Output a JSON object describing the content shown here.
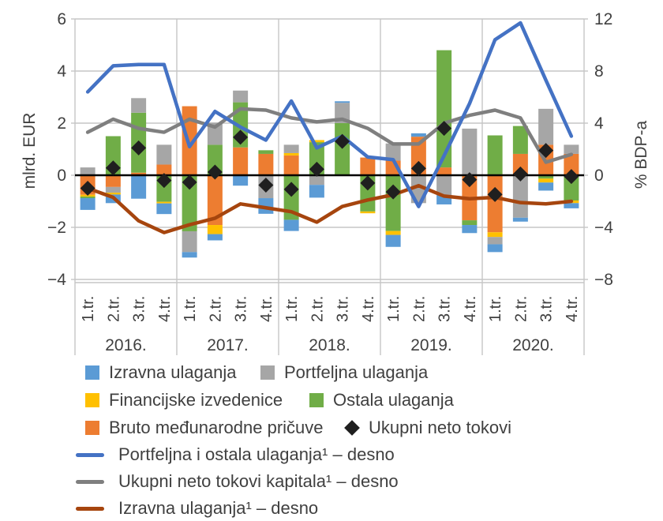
{
  "chart_data": {
    "type": "combo: stacked bars (left axis, mlrd. EUR) + diamond markers + three lines (right axis, % BDP-a)",
    "title": "",
    "left_axis": {
      "label": "mlrd. EUR",
      "ticks": [
        6,
        4,
        2,
        0,
        -2,
        -4
      ],
      "min": -4,
      "max": 6
    },
    "right_axis": {
      "label": "% BDP-a",
      "ticks": [
        12,
        8,
        4,
        0,
        -4,
        -8
      ],
      "min": -8,
      "max": 12
    },
    "years": [
      "2016.",
      "2017.",
      "2018.",
      "2019.",
      "2020."
    ],
    "quarter_labels": [
      "1.tr.",
      "2.tr.",
      "3.tr.",
      "4.tr."
    ],
    "grid_color": "#C6C6C6",
    "zero_line_color": "#000000",
    "text_color": "#404040",
    "series": {
      "pricuve": {
        "label": "Bruto međunarodne pričuve",
        "color": "#ED7D31"
      },
      "ostala": {
        "label": "Ostala ulaganja",
        "color": "#70AD47"
      },
      "financijske": {
        "label": "Financijske izvedenice",
        "color": "#FFC000"
      },
      "portfeljna": {
        "label": "Portfeljna ulaganja",
        "color": "#A6A6A6"
      },
      "izravna": {
        "label": "Izravna ulaganja",
        "color": "#5B9BD5"
      }
    },
    "bars_mlrd_eur": [
      {
        "year": "2016.",
        "q": "1.tr.",
        "pos": [
          [
            "portfeljna",
            0.3
          ]
        ],
        "neg": [
          [
            "pricuve",
            0.75
          ],
          [
            "financijske",
            0.07
          ],
          [
            "ostala",
            0.06
          ],
          [
            "izravna",
            0.45
          ]
        ]
      },
      {
        "year": "2016.",
        "q": "2.tr.",
        "pos": [
          [
            "ostala",
            1.5
          ]
        ],
        "neg": [
          [
            "pricuve",
            0.45
          ],
          [
            "portfeljna",
            0.22
          ],
          [
            "financijske",
            0.07
          ],
          [
            "izravna",
            0.33
          ]
        ]
      },
      {
        "year": "2016.",
        "q": "3.tr.",
        "pos": [
          [
            "pricuve",
            0.1
          ],
          [
            "ostala",
            2.3
          ],
          [
            "portfeljna",
            0.56
          ]
        ],
        "neg": [
          [
            "izravna",
            0.9
          ]
        ]
      },
      {
        "year": "2016.",
        "q": "4.tr.",
        "pos": [
          [
            "pricuve",
            0.41
          ],
          [
            "portfeljna",
            0.76
          ]
        ],
        "neg": [
          [
            "ostala",
            1.02
          ],
          [
            "financijske",
            0.06
          ],
          [
            "izravna",
            0.41
          ]
        ]
      },
      {
        "year": "2017.",
        "q": "1.tr.",
        "pos": [
          [
            "pricuve",
            2.65
          ]
        ],
        "neg": [
          [
            "ostala",
            2.15
          ],
          [
            "portfeljna",
            0.8
          ],
          [
            "izravna",
            0.21
          ]
        ]
      },
      {
        "year": "2017.",
        "q": "2.tr.",
        "pos": [
          [
            "ostala",
            1.17
          ],
          [
            "portfeljna",
            0.85
          ]
        ],
        "neg": [
          [
            "pricuve",
            1.91
          ],
          [
            "financijske",
            0.35
          ],
          [
            "izravna",
            0.24
          ]
        ]
      },
      {
        "year": "2017.",
        "q": "3.tr.",
        "pos": [
          [
            "pricuve",
            1.07
          ],
          [
            "ostala",
            1.73
          ],
          [
            "portfeljna",
            0.45
          ]
        ],
        "neg": [
          [
            "izravna",
            0.4
          ]
        ]
      },
      {
        "year": "2017.",
        "q": "4.tr.",
        "pos": [
          [
            "pricuve",
            0.82
          ],
          [
            "ostala",
            0.14
          ]
        ],
        "neg": [
          [
            "portfeljna",
            0.88
          ],
          [
            "izravna",
            0.6
          ]
        ]
      },
      {
        "year": "2018.",
        "q": "1.tr.",
        "pos": [
          [
            "pricuve",
            0.76
          ],
          [
            "financijske",
            0.09
          ],
          [
            "portfeljna",
            0.32
          ]
        ],
        "neg": [
          [
            "ostala",
            1.71
          ],
          [
            "izravna",
            0.43
          ]
        ]
      },
      {
        "year": "2018.",
        "q": "2.tr.",
        "pos": [
          [
            "ostala",
            1.27
          ],
          [
            "financijske",
            0.08
          ]
        ],
        "neg": [
          [
            "portfeljna",
            0.37
          ],
          [
            "izravna",
            0.49
          ]
        ]
      },
      {
        "year": "2018.",
        "q": "3.tr.",
        "pos": [
          [
            "ostala",
            2.0
          ],
          [
            "portfeljna",
            0.78
          ],
          [
            "izravna",
            0.06
          ]
        ],
        "neg": []
      },
      {
        "year": "2018.",
        "q": "4.tr.",
        "pos": [
          [
            "pricuve",
            0.68
          ]
        ],
        "neg": [
          [
            "ostala",
            1.39
          ],
          [
            "financijske",
            0.07
          ]
        ]
      },
      {
        "year": "2019.",
        "q": "1.tr.",
        "pos": [
          [
            "pricuve",
            0.56
          ],
          [
            "portfeljna",
            0.66
          ]
        ],
        "neg": [
          [
            "ostala",
            2.14
          ],
          [
            "financijske",
            0.15
          ],
          [
            "izravna",
            0.46
          ]
        ]
      },
      {
        "year": "2019.",
        "q": "2.tr.",
        "pos": [
          [
            "pricuve",
            1.48
          ],
          [
            "izravna",
            0.13
          ]
        ],
        "neg": [
          [
            "portfeljna",
            1.07
          ]
        ]
      },
      {
        "year": "2019.",
        "q": "3.tr.",
        "pos": [
          [
            "pricuve",
            0.3
          ],
          [
            "ostala",
            4.5
          ]
        ],
        "neg": [
          [
            "portfeljna",
            0.76
          ],
          [
            "izravna",
            0.36
          ]
        ]
      },
      {
        "year": "2019.",
        "q": "4.tr.",
        "pos": [
          [
            "portfeljna",
            1.79
          ]
        ],
        "neg": [
          [
            "pricuve",
            1.73
          ],
          [
            "ostala",
            0.18
          ],
          [
            "izravna",
            0.31
          ]
        ]
      },
      {
        "year": "2020.",
        "q": "1.tr.",
        "pos": [
          [
            "ostala",
            1.53
          ]
        ],
        "neg": [
          [
            "pricuve",
            2.19
          ],
          [
            "financijske",
            0.18
          ],
          [
            "portfeljna",
            0.28
          ],
          [
            "izravna",
            0.3
          ]
        ]
      },
      {
        "year": "2020.",
        "q": "2.tr.",
        "pos": [
          [
            "pricuve",
            0.82
          ],
          [
            "ostala",
            1.07
          ]
        ],
        "neg": [
          [
            "portfeljna",
            1.63
          ],
          [
            "izravna",
            0.15
          ]
        ]
      },
      {
        "year": "2020.",
        "q": "3.tr.",
        "pos": [
          [
            "pricuve",
            1.17
          ],
          [
            "portfeljna",
            1.38
          ]
        ],
        "neg": [
          [
            "ostala",
            0.13
          ],
          [
            "financijske",
            0.15
          ],
          [
            "izravna",
            0.31
          ]
        ]
      },
      {
        "year": "2020.",
        "q": "4.tr.",
        "pos": [
          [
            "pricuve",
            0.82
          ],
          [
            "portfeljna",
            0.35
          ]
        ],
        "neg": [
          [
            "ostala",
            0.97
          ],
          [
            "financijske",
            0.1
          ],
          [
            "izravna",
            0.2
          ]
        ]
      }
    ],
    "diamonds_mlrd_eur": {
      "label": "Ukupni neto tokovi",
      "color": "#1F1F1F",
      "values": [
        -0.5,
        0.28,
        1.05,
        -0.2,
        -0.27,
        0.12,
        1.46,
        -0.38,
        -0.54,
        0.23,
        1.3,
        -0.3,
        -0.64,
        0.26,
        1.8,
        -0.17,
        -0.74,
        0.05,
        0.95,
        -0.05
      ]
    },
    "lines_pct_bdp": [
      {
        "key": "portfeljna_i_ostala",
        "label": "Portfeljna i ostala ulaganja¹ – desno",
        "color": "#4472C4",
        "values": [
          6.4,
          8.4,
          8.5,
          8.5,
          2.2,
          4.9,
          3.7,
          2.7,
          5.7,
          2.1,
          3.0,
          1.4,
          1.2,
          -2.4,
          1.5,
          5.5,
          10.4,
          11.7,
          7.3,
          3.0
        ]
      },
      {
        "key": "ukupni_neto_kapitala",
        "label": "Ukupni neto tokovi kapitala¹ – desno",
        "color": "#7F7F7F",
        "values": [
          3.3,
          4.3,
          3.6,
          3.3,
          4.3,
          3.7,
          5.1,
          5.0,
          4.4,
          4.1,
          4.3,
          3.6,
          2.4,
          2.4,
          4.0,
          4.6,
          5.0,
          4.4,
          1.0,
          1.6
        ]
      },
      {
        "key": "izravna_desno",
        "label": "Izravna ulaganja¹ – desno",
        "color": "#A6450E",
        "values": [
          -1.0,
          -1.7,
          -3.5,
          -4.4,
          -3.8,
          -3.3,
          -2.2,
          -2.5,
          -2.8,
          -3.6,
          -2.4,
          -1.9,
          -1.5,
          -0.8,
          -1.6,
          -1.8,
          -1.7,
          -2.1,
          -2.2,
          -2.0
        ]
      }
    ]
  },
  "legend": {
    "items": [
      {
        "label": "Izravna ulaganja",
        "swatch": "square",
        "color": "#5B9BD5"
      },
      {
        "label": "Portfeljna ulaganja",
        "swatch": "square",
        "color": "#A6A6A6"
      },
      {
        "label": "Financijske izvedenice",
        "swatch": "square",
        "color": "#FFC000"
      },
      {
        "label": "Ostala ulaganja",
        "swatch": "square",
        "color": "#70AD47"
      },
      {
        "label": "Bruto međunarodne pričuve",
        "swatch": "square",
        "color": "#ED7D31"
      },
      {
        "label": "Ukupni neto tokovi",
        "swatch": "diamond",
        "color": "#1F1F1F"
      },
      {
        "label": "Portfeljna i ostala ulaganja¹ – desno",
        "swatch": "line",
        "color": "#4472C4"
      },
      {
        "label": "Ukupni neto tokovi kapitala¹ – desno",
        "swatch": "line",
        "color": "#7F7F7F"
      },
      {
        "label": "Izravna ulaganja¹ – desno",
        "swatch": "line",
        "color": "#A6450E"
      }
    ]
  }
}
